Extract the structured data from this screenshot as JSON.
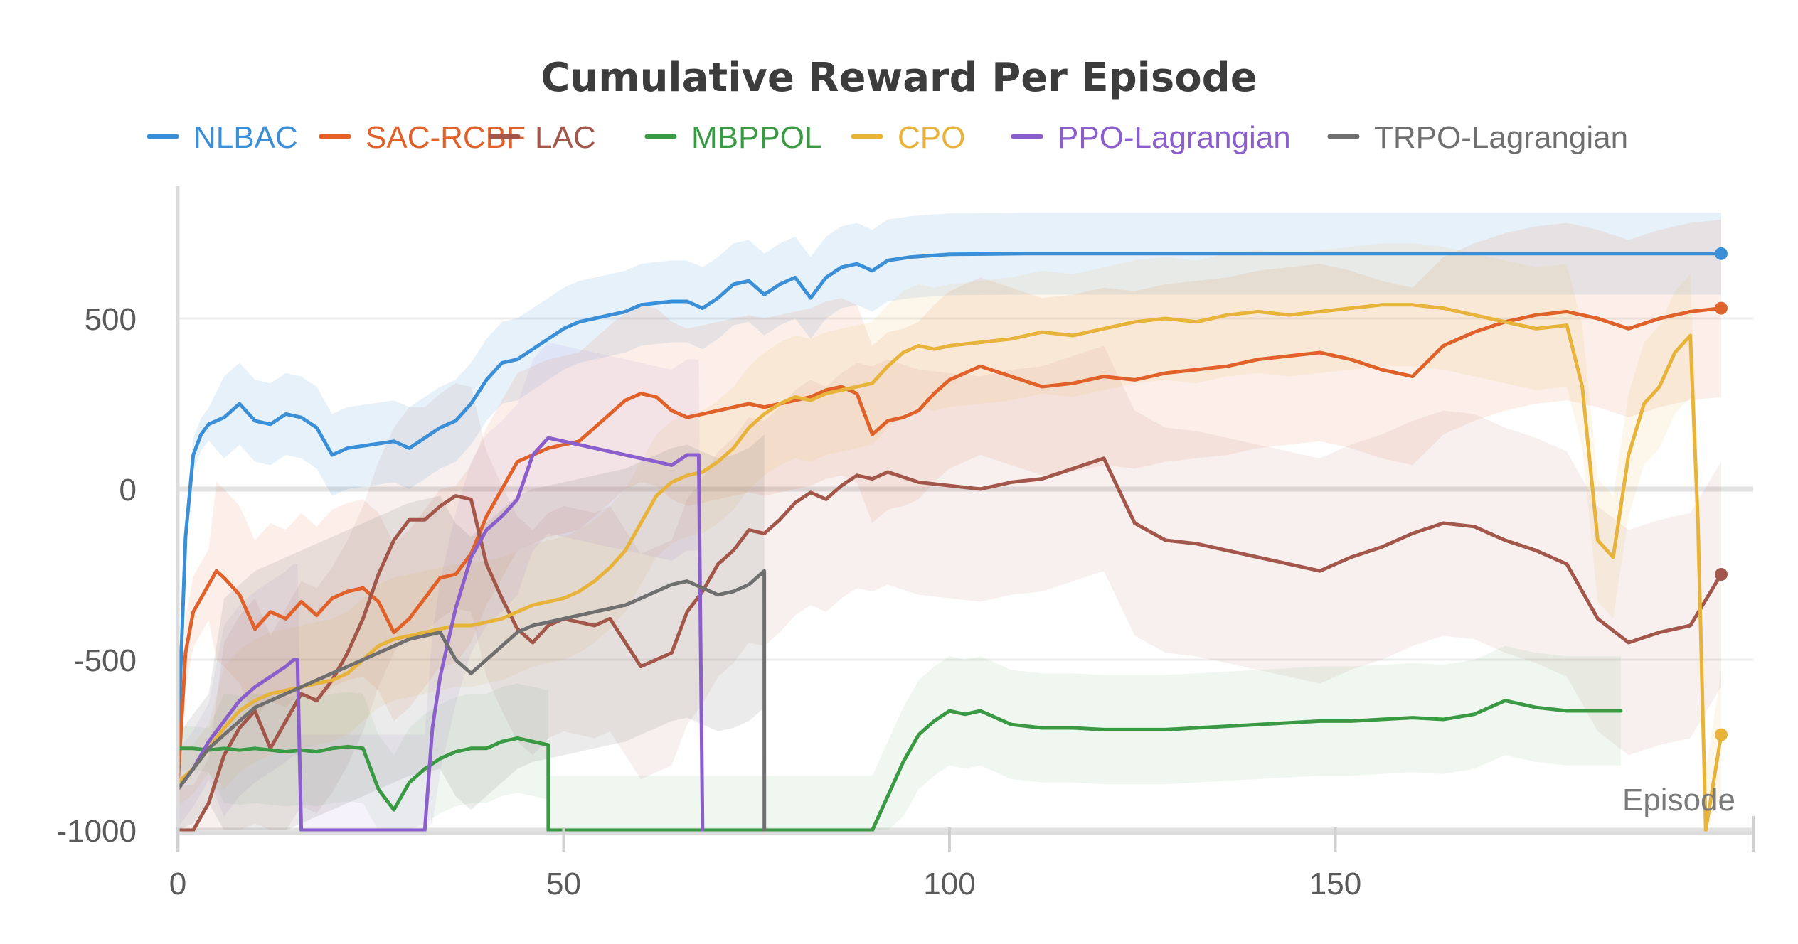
{
  "chart_data": {
    "type": "line",
    "title": "Cumulative Reward Per Episode",
    "xlabel": "Episode",
    "ylabel": "",
    "xlim": [
      0,
      200
    ],
    "ylim": [
      -1000,
      850
    ],
    "x_ticks": [
      0,
      50,
      100,
      150
    ],
    "y_ticks": [
      500,
      0,
      -500,
      -1000
    ],
    "grid": true,
    "legend_position": "top",
    "series": [
      {
        "name": "NLBAC",
        "color": "#3b8fd6",
        "x": [
          0,
          1,
          2,
          3,
          4,
          6,
          8,
          10,
          12,
          14,
          16,
          18,
          20,
          22,
          25,
          28,
          30,
          32,
          34,
          36,
          38,
          40,
          42,
          44,
          46,
          48,
          50,
          52,
          54,
          56,
          58,
          60,
          62,
          64,
          66,
          68,
          70,
          72,
          74,
          76,
          78,
          80,
          82,
          84,
          86,
          88,
          90,
          92,
          95,
          100,
          110,
          120,
          140,
          160,
          180,
          200
        ],
        "y": [
          -760,
          -140,
          100,
          160,
          190,
          210,
          250,
          200,
          190,
          220,
          210,
          180,
          100,
          120,
          130,
          140,
          120,
          150,
          180,
          200,
          250,
          320,
          370,
          380,
          410,
          440,
          470,
          490,
          500,
          510,
          520,
          540,
          545,
          550,
          550,
          530,
          560,
          600,
          610,
          570,
          600,
          620,
          560,
          620,
          650,
          660,
          640,
          670,
          680,
          688,
          690,
          690,
          690,
          690,
          690,
          690
        ]
      },
      {
        "name": "SAC-RCBF",
        "color": "#e0622a",
        "x": [
          0,
          1,
          2,
          3,
          4,
          5,
          6,
          8,
          10,
          12,
          14,
          16,
          18,
          20,
          22,
          24,
          26,
          28,
          30,
          32,
          34,
          36,
          38,
          40,
          42,
          44,
          46,
          48,
          50,
          52,
          54,
          56,
          58,
          60,
          62,
          64,
          66,
          68,
          70,
          72,
          74,
          76,
          78,
          80,
          82,
          84,
          86,
          88,
          90,
          92,
          94,
          96,
          98,
          100,
          104,
          108,
          112,
          116,
          120,
          124,
          128,
          132,
          136,
          140,
          144,
          148,
          152,
          156,
          160,
          164,
          168,
          172,
          176,
          180,
          184,
          188,
          192,
          196,
          200
        ],
        "y": [
          -870,
          -480,
          -360,
          -320,
          -280,
          -240,
          -260,
          -310,
          -410,
          -360,
          -380,
          -330,
          -370,
          -320,
          -300,
          -290,
          -330,
          -420,
          -380,
          -320,
          -260,
          -250,
          -190,
          -80,
          0,
          80,
          100,
          120,
          130,
          140,
          180,
          220,
          260,
          280,
          270,
          230,
          210,
          220,
          230,
          240,
          250,
          240,
          250,
          260,
          270,
          290,
          300,
          280,
          160,
          200,
          210,
          230,
          280,
          320,
          360,
          330,
          300,
          310,
          330,
          320,
          340,
          350,
          360,
          380,
          390,
          400,
          380,
          350,
          330,
          420,
          460,
          490,
          510,
          520,
          500,
          470,
          500,
          520,
          530
        ]
      },
      {
        "name": "LAC",
        "color": "#a3574a",
        "x": [
          0,
          2,
          4,
          6,
          8,
          10,
          12,
          14,
          16,
          18,
          20,
          22,
          24,
          26,
          28,
          30,
          32,
          34,
          36,
          38,
          40,
          42,
          44,
          46,
          48,
          50,
          52,
          54,
          56,
          58,
          60,
          62,
          64,
          66,
          68,
          70,
          72,
          74,
          76,
          78,
          80,
          82,
          84,
          86,
          88,
          90,
          92,
          96,
          100,
          104,
          108,
          112,
          116,
          120,
          124,
          128,
          132,
          136,
          140,
          144,
          148,
          152,
          156,
          160,
          164,
          168,
          172,
          176,
          180,
          184,
          188,
          192,
          196,
          200
        ],
        "y": [
          -1000,
          -1000,
          -920,
          -780,
          -700,
          -650,
          -760,
          -680,
          -600,
          -620,
          -560,
          -480,
          -380,
          -250,
          -150,
          -90,
          -90,
          -50,
          -20,
          -30,
          -220,
          -320,
          -410,
          -450,
          -400,
          -380,
          -390,
          -400,
          -380,
          -450,
          -520,
          -500,
          -480,
          -360,
          -300,
          -220,
          -180,
          -120,
          -130,
          -90,
          -40,
          -10,
          -30,
          10,
          40,
          30,
          50,
          20,
          10,
          0,
          20,
          30,
          60,
          90,
          -100,
          -150,
          -160,
          -180,
          -200,
          -220,
          -240,
          -200,
          -170,
          -130,
          -100,
          -110,
          -150,
          -180,
          -220,
          -380,
          -450,
          -420,
          -400,
          -250
        ]
      },
      {
        "name": "MBPPOL",
        "color": "#3a9a44",
        "x": [
          0,
          2,
          4,
          6,
          8,
          10,
          12,
          14,
          16,
          18,
          20,
          22,
          24,
          26,
          28,
          30,
          32,
          34,
          36,
          38,
          40,
          42,
          44,
          46,
          48,
          48.01,
          90,
          92,
          94,
          96,
          98,
          100,
          102,
          104,
          108,
          112,
          116,
          120,
          124,
          128,
          132,
          136,
          140,
          144,
          148,
          152,
          156,
          160,
          164,
          168,
          172,
          176,
          180,
          184,
          187
        ],
        "y": [
          -760,
          -760,
          -765,
          -760,
          -765,
          -760,
          -765,
          -770,
          -765,
          -770,
          -760,
          -755,
          -760,
          -880,
          -940,
          -860,
          -820,
          -790,
          -770,
          -760,
          -760,
          -740,
          -730,
          -740,
          -750,
          -1000,
          -1000,
          -900,
          -800,
          -720,
          -680,
          -650,
          -660,
          -650,
          -690,
          -700,
          -700,
          -705,
          -705,
          -705,
          -700,
          -695,
          -690,
          -685,
          -680,
          -680,
          -675,
          -670,
          -675,
          -660,
          -620,
          -640,
          -650,
          -650,
          -650
        ]
      },
      {
        "name": "CPO",
        "color": "#e8b33a",
        "x": [
          0,
          2,
          4,
          6,
          8,
          10,
          12,
          14,
          16,
          18,
          20,
          22,
          24,
          26,
          28,
          30,
          32,
          34,
          36,
          38,
          40,
          42,
          44,
          46,
          48,
          50,
          52,
          54,
          56,
          58,
          60,
          62,
          64,
          66,
          68,
          70,
          72,
          74,
          76,
          78,
          80,
          82,
          84,
          86,
          88,
          90,
          92,
          94,
          96,
          98,
          100,
          104,
          108,
          112,
          116,
          120,
          124,
          128,
          132,
          136,
          140,
          144,
          148,
          152,
          156,
          160,
          164,
          168,
          172,
          176,
          180,
          182,
          184,
          186,
          188,
          190,
          192,
          194,
          196,
          197,
          198,
          200
        ],
        "y": [
          -860,
          -820,
          -760,
          -700,
          -650,
          -620,
          -600,
          -590,
          -580,
          -570,
          -560,
          -540,
          -500,
          -460,
          -440,
          -430,
          -420,
          -410,
          -400,
          -400,
          -390,
          -380,
          -360,
          -340,
          -330,
          -320,
          -300,
          -270,
          -230,
          -180,
          -100,
          -20,
          20,
          40,
          50,
          80,
          120,
          180,
          220,
          250,
          270,
          260,
          280,
          290,
          300,
          310,
          360,
          400,
          420,
          410,
          420,
          430,
          440,
          460,
          450,
          470,
          490,
          500,
          490,
          510,
          520,
          510,
          520,
          530,
          540,
          540,
          530,
          510,
          490,
          470,
          480,
          300,
          -150,
          -200,
          100,
          250,
          300,
          400,
          450,
          -100,
          -1000,
          -720
        ]
      },
      {
        "name": "PPO-Lagrangian",
        "color": "#8a5fcc",
        "x": [
          0,
          2,
          4,
          6,
          8,
          10,
          12,
          14,
          15,
          15.5,
          16,
          32,
          33,
          34,
          36,
          38,
          40,
          42,
          44,
          46,
          48,
          50,
          52,
          54,
          56,
          58,
          60,
          62,
          64,
          66,
          67,
          67.5,
          68
        ],
        "y": [
          -880,
          -820,
          -740,
          -680,
          -620,
          -580,
          -550,
          -520,
          -500,
          -500,
          -1000,
          -1000,
          -700,
          -550,
          -350,
          -200,
          -120,
          -80,
          -30,
          100,
          150,
          140,
          130,
          120,
          110,
          100,
          90,
          80,
          70,
          100,
          100,
          100,
          -1000
        ]
      },
      {
        "name": "TRPO-Lagrangian",
        "color": "#6f6f6f",
        "x": [
          0,
          2,
          4,
          6,
          8,
          10,
          12,
          14,
          16,
          18,
          20,
          22,
          24,
          26,
          28,
          30,
          32,
          34,
          36,
          38,
          40,
          42,
          44,
          46,
          48,
          50,
          52,
          54,
          56,
          58,
          60,
          62,
          64,
          66,
          68,
          70,
          72,
          74,
          76,
          76.01
        ],
        "y": [
          -880,
          -820,
          -760,
          -720,
          -680,
          -640,
          -620,
          -600,
          -580,
          -560,
          -540,
          -520,
          -500,
          -480,
          -460,
          -440,
          -430,
          -420,
          -500,
          -540,
          -500,
          -460,
          -420,
          -400,
          -390,
          -380,
          -370,
          -360,
          -350,
          -340,
          -320,
          -300,
          -280,
          -270,
          -290,
          -310,
          -300,
          -280,
          -240,
          -1000
        ]
      }
    ]
  }
}
